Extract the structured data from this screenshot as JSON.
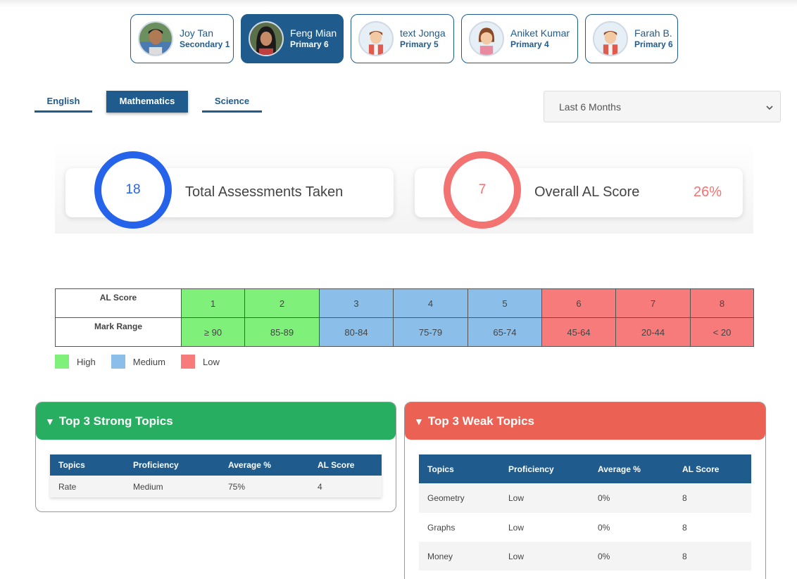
{
  "students": [
    {
      "name": "Joy Tan",
      "level": "Secondary 1",
      "avatar": "photo-boy",
      "active": false
    },
    {
      "name": "Feng Mian",
      "level": "Primary 6",
      "avatar": "photo-girl",
      "active": true
    },
    {
      "name": "text Jonga",
      "level": "Primary 5",
      "avatar": "cartoon-boy",
      "active": false
    },
    {
      "name": "Aniket Kumar",
      "level": "Primary 4",
      "avatar": "cartoon-girl",
      "active": false
    },
    {
      "name": "Farah B.",
      "level": "Primary 6",
      "avatar": "cartoon-boy",
      "active": false
    }
  ],
  "subjects": {
    "english": "English",
    "mathematics": "Mathematics",
    "science": "Science",
    "active": "Mathematics"
  },
  "period_select": {
    "value": "Last 6 Months",
    "icon": "chevron-down-icon"
  },
  "stats": {
    "assessments": {
      "value": "18",
      "label": "Total Assessments Taken",
      "color": "#2563eb"
    },
    "al_score": {
      "value": "7",
      "label": "Overall AL Score",
      "percent": "26%",
      "color": "#f37272"
    }
  },
  "al_table": {
    "row1_label": "AL Score",
    "row2_label": "Mark Range",
    "scores": [
      "1",
      "2",
      "3",
      "4",
      "5",
      "6",
      "7",
      "8"
    ],
    "ranges": [
      "≥ 90",
      "85-89",
      "80-84",
      "75-79",
      "65-74",
      "45-64",
      "20-44",
      "< 20"
    ]
  },
  "legend": {
    "high": "High",
    "medium": "Medium",
    "low": "Low",
    "colors": {
      "high": "#7ff07a",
      "medium": "#8bbfea",
      "low": "#f77b7b"
    }
  },
  "strong_topics": {
    "title": "Top 3 Strong Topics",
    "headers": [
      "Topics",
      "Proficiency",
      "Average %",
      "AL Score"
    ],
    "rows": [
      [
        "Rate",
        "Medium",
        "75%",
        "4"
      ]
    ]
  },
  "weak_topics": {
    "title": "Top 3 Weak Topics",
    "headers": [
      "Topics",
      "Proficiency",
      "Average %",
      "AL Score"
    ],
    "rows": [
      [
        "Geometry",
        "Low",
        "0%",
        "8"
      ],
      [
        "Graphs",
        "Low",
        "0%",
        "8"
      ],
      [
        "Money",
        "Low",
        "0%",
        "8"
      ]
    ]
  },
  "theme": {
    "primary": "#1f5c8d",
    "strong": "#27ae60",
    "weak": "#eb6153"
  }
}
